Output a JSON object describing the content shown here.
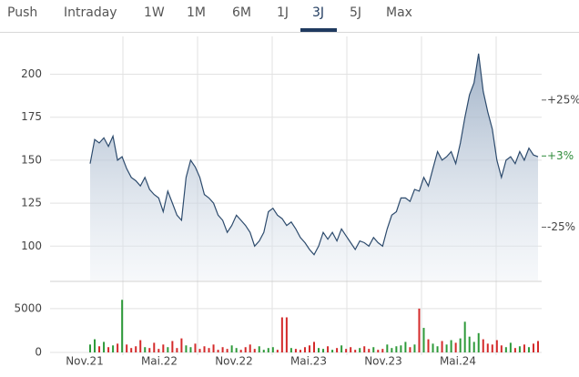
{
  "tabs": {
    "items": [
      "Push",
      "Intraday",
      "1W",
      "1M",
      "6M",
      "1J",
      "3J",
      "5J",
      "Max"
    ],
    "selected": 6
  },
  "chart_data": [
    {
      "type": "area",
      "color": "#2d4b6d",
      "values": [
        148,
        162,
        160,
        163,
        158,
        164,
        150,
        152,
        145,
        140,
        138,
        135,
        140,
        133,
        130,
        128,
        120,
        132,
        125,
        118,
        115,
        140,
        150,
        146,
        140,
        130,
        128,
        125,
        118,
        115,
        108,
        112,
        118,
        115,
        112,
        108,
        100,
        103,
        108,
        120,
        122,
        118,
        116,
        112,
        114,
        110,
        105,
        102,
        98,
        95,
        100,
        108,
        104,
        108,
        103,
        110,
        106,
        102,
        98,
        103,
        102,
        100,
        105,
        102,
        100,
        110,
        118,
        120,
        128,
        128,
        126,
        133,
        132,
        140,
        135,
        145,
        155,
        150,
        152,
        155,
        148,
        160,
        175,
        188,
        195,
        212,
        190,
        178,
        168,
        150,
        140,
        150,
        152,
        148,
        155,
        150,
        157,
        153,
        152
      ],
      "ylim": [
        80,
        222
      ],
      "yticks": [
        100,
        125,
        150,
        175,
        200
      ],
      "y2lim": [
        -45.95,
        50
      ],
      "y2ticks": [
        {
          "value": 25,
          "label": "+25%"
        },
        {
          "value": -25,
          "label": "-25%"
        }
      ],
      "last_label": {
        "value": 3,
        "label": "+3%"
      },
      "last_color": "#2e8b3a",
      "grid": true
    },
    {
      "type": "volume",
      "up_color": "#2e9a3a",
      "down_color": "#d42a2a",
      "values": [
        900,
        1500,
        700,
        1200,
        600,
        800,
        1000,
        6000,
        900,
        500,
        700,
        1400,
        600,
        500,
        1100,
        400,
        900,
        600,
        1300,
        500,
        1600,
        800,
        600,
        1000,
        400,
        700,
        500,
        900,
        300,
        600,
        400,
        800,
        500,
        300,
        600,
        900,
        400,
        700,
        300,
        500,
        600,
        300,
        4000,
        4000,
        500,
        400,
        300,
        600,
        800,
        1200,
        500,
        400,
        700,
        300,
        500,
        800,
        400,
        600,
        300,
        500,
        700,
        400,
        600,
        300,
        400,
        900,
        500,
        700,
        800,
        1200,
        600,
        900,
        5000,
        2800,
        1500,
        1000,
        700,
        1300,
        900,
        1400,
        1100,
        1600,
        3500,
        1800,
        1200,
        2200,
        1500,
        1000,
        900,
        1400,
        800,
        600,
        1100,
        500,
        700,
        900,
        600,
        1000,
        1300
      ],
      "ylim": [
        0,
        8000
      ],
      "yticks": [
        0,
        5000
      ],
      "xticks": [
        "Nov.21",
        "Mai.22",
        "Nov.22",
        "Mai.23",
        "Nov.23",
        "Mai.24"
      ],
      "grid": true
    }
  ]
}
